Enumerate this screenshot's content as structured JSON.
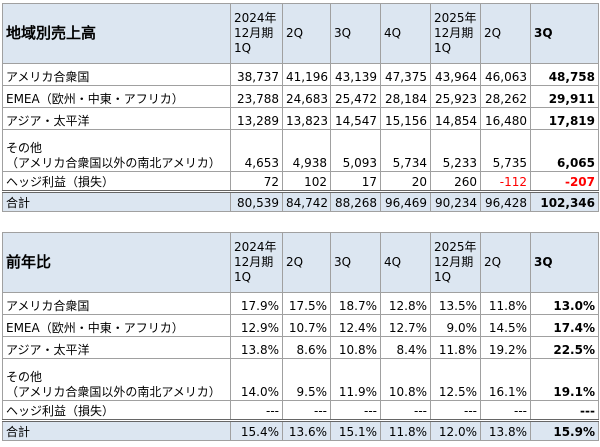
{
  "tables": [
    {
      "title": "地域別売上高",
      "columns": [
        [
          "2024年",
          "12月期",
          "1Q"
        ],
        [
          "2Q"
        ],
        [
          "3Q"
        ],
        [
          "4Q"
        ],
        [
          "2025年",
          "12月期",
          "1Q"
        ],
        [
          "2Q"
        ],
        [
          "3Q"
        ]
      ],
      "rows": [
        {
          "label": [
            "アメリカ合衆国"
          ],
          "cells": [
            "38,737",
            "41,196",
            "43,139",
            "47,375",
            "43,964",
            "46,063",
            "48,758"
          ]
        },
        {
          "label": [
            "EMEA（欧州・中東・アフリカ）"
          ],
          "cells": [
            "23,788",
            "24,683",
            "25,472",
            "28,184",
            "25,923",
            "28,262",
            "29,911"
          ]
        },
        {
          "label": [
            "アジア・太平洋"
          ],
          "cells": [
            "13,289",
            "13,823",
            "14,547",
            "15,156",
            "14,854",
            "16,480",
            "17,819"
          ]
        },
        {
          "label": [
            "その他",
            "（アメリカ合衆国以外の南北アメリカ）"
          ],
          "cells": [
            "4,653",
            "4,938",
            "5,093",
            "5,734",
            "5,233",
            "5,735",
            "6,065"
          ]
        },
        {
          "label": [
            "ヘッジ利益（損失）"
          ],
          "cells": [
            "72",
            "102",
            "17",
            "20",
            "260",
            "-112",
            "-207"
          ]
        }
      ],
      "total": {
        "label": "合計",
        "cells": [
          "80,539",
          "84,742",
          "88,268",
          "96,469",
          "90,234",
          "96,428",
          "102,346"
        ]
      }
    },
    {
      "title": "前年比",
      "columns": [
        [
          "2024年",
          "12月期",
          "1Q"
        ],
        [
          "2Q"
        ],
        [
          "3Q"
        ],
        [
          "4Q"
        ],
        [
          "2025年",
          "12月期",
          "1Q"
        ],
        [
          "2Q"
        ],
        [
          "3Q"
        ]
      ],
      "rows": [
        {
          "label": [
            "アメリカ合衆国"
          ],
          "cells": [
            "17.9%",
            "17.5%",
            "18.7%",
            "12.8%",
            "13.5%",
            "11.8%",
            "13.0%"
          ]
        },
        {
          "label": [
            "EMEA（欧州・中東・アフリカ）"
          ],
          "cells": [
            "12.9%",
            "10.7%",
            "12.4%",
            "12.7%",
            "9.0%",
            "14.5%",
            "17.4%"
          ]
        },
        {
          "label": [
            "アジア・太平洋"
          ],
          "cells": [
            "13.8%",
            "8.6%",
            "10.8%",
            "8.4%",
            "11.8%",
            "19.2%",
            "22.5%"
          ]
        },
        {
          "label": [
            "その他",
            "（アメリカ合衆国以外の南北アメリカ）"
          ],
          "cells": [
            "14.0%",
            "9.5%",
            "11.9%",
            "10.8%",
            "12.5%",
            "16.1%",
            "19.1%"
          ]
        },
        {
          "label": [
            "ヘッジ利益（損失）"
          ],
          "cells": [
            "---",
            "---",
            "---",
            "---",
            "---",
            "---",
            "---"
          ]
        }
      ],
      "total": {
        "label": "合計",
        "cells": [
          "15.4%",
          "13.6%",
          "15.1%",
          "11.8%",
          "12.0%",
          "13.8%",
          "15.9%"
        ]
      }
    }
  ]
}
